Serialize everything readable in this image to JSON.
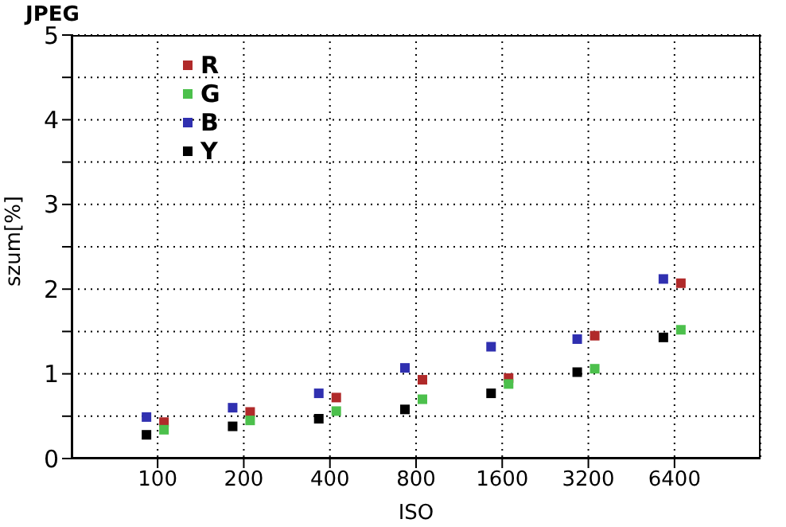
{
  "chart_data": {
    "type": "scatter",
    "title": "JPEG",
    "xlabel": "ISO",
    "ylabel": "szum[%]",
    "categories": [
      "100",
      "200",
      "400",
      "800",
      "1600",
      "3200",
      "6400"
    ],
    "series": [
      {
        "name": "R",
        "color": "#b02a2a",
        "values": [
          0.43,
          0.55,
          0.72,
          0.93,
          0.95,
          1.45,
          2.07
        ]
      },
      {
        "name": "G",
        "color": "#4cc04c",
        "values": [
          0.34,
          0.45,
          0.56,
          0.7,
          0.88,
          1.06,
          1.52
        ]
      },
      {
        "name": "B",
        "color": "#3030b0",
        "values": [
          0.49,
          0.6,
          0.77,
          1.07,
          1.32,
          1.41,
          2.12
        ]
      },
      {
        "name": "Y",
        "color": "#000000",
        "values": [
          0.28,
          0.38,
          0.47,
          0.58,
          0.77,
          1.02,
          1.43
        ]
      }
    ],
    "ylim": [
      0,
      5
    ],
    "yticks": [
      0,
      {
        "value": 0.5,
        "label": null
      },
      1,
      {
        "value": 1.5,
        "label": null
      },
      2,
      {
        "value": 2.5,
        "label": null
      },
      3,
      {
        "value": 3.5,
        "label": null
      },
      4,
      {
        "value": 4.5,
        "label": null
      },
      5
    ],
    "grid": true,
    "legend": "top left",
    "marker": "square"
  }
}
